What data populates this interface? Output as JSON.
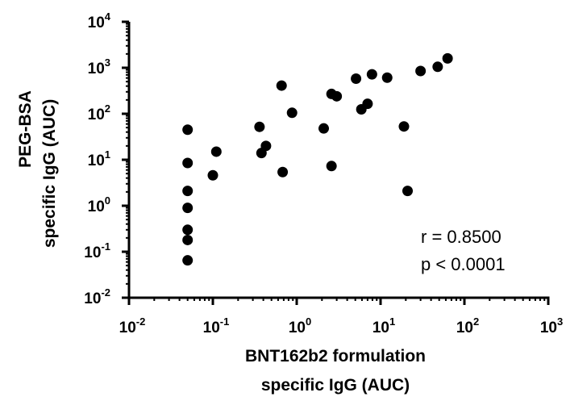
{
  "chart_data": {
    "type": "scatter",
    "x_scale": "log",
    "y_scale": "log",
    "xlim": [
      0.01,
      1000
    ],
    "ylim": [
      0.01,
      10000
    ],
    "x_ticks": [
      {
        "base": "10",
        "exp": "-2",
        "value": 0.01
      },
      {
        "base": "10",
        "exp": "-1",
        "value": 0.1
      },
      {
        "base": "10",
        "exp": "0",
        "value": 1
      },
      {
        "base": "10",
        "exp": "1",
        "value": 10
      },
      {
        "base": "10",
        "exp": "2",
        "value": 100
      },
      {
        "base": "10",
        "exp": "3",
        "value": 1000
      }
    ],
    "y_ticks": [
      {
        "base": "10",
        "exp": "-2",
        "value": 0.01
      },
      {
        "base": "10",
        "exp": "-1",
        "value": 0.1
      },
      {
        "base": "10",
        "exp": "0",
        "value": 1
      },
      {
        "base": "10",
        "exp": "1",
        "value": 10
      },
      {
        "base": "10",
        "exp": "2",
        "value": 100
      },
      {
        "base": "10",
        "exp": "3",
        "value": 1000
      },
      {
        "base": "10",
        "exp": "4",
        "value": 10000
      }
    ],
    "xlabel": [
      "BNT162b2 formulation",
      "specific IgG (AUC)"
    ],
    "ylabel": [
      "PEG-BSA",
      "specific IgG (AUC)"
    ],
    "annotations": [
      "r = 0.8500",
      "p < 0.0001"
    ],
    "point_color": "#000000",
    "grid": false,
    "points": [
      {
        "x": 0.05,
        "y": 45
      },
      {
        "x": 0.05,
        "y": 8.5
      },
      {
        "x": 0.05,
        "y": 2.1
      },
      {
        "x": 0.05,
        "y": 0.9
      },
      {
        "x": 0.05,
        "y": 0.3
      },
      {
        "x": 0.05,
        "y": 0.18
      },
      {
        "x": 0.05,
        "y": 0.065
      },
      {
        "x": 0.1,
        "y": 4.6
      },
      {
        "x": 0.11,
        "y": 15
      },
      {
        "x": 0.36,
        "y": 52
      },
      {
        "x": 0.38,
        "y": 14
      },
      {
        "x": 0.43,
        "y": 20
      },
      {
        "x": 0.66,
        "y": 410
      },
      {
        "x": 0.68,
        "y": 5.4
      },
      {
        "x": 0.88,
        "y": 105
      },
      {
        "x": 2.1,
        "y": 48
      },
      {
        "x": 2.6,
        "y": 270
      },
      {
        "x": 2.6,
        "y": 7.3
      },
      {
        "x": 3.0,
        "y": 240
      },
      {
        "x": 5.1,
        "y": 580
      },
      {
        "x": 5.9,
        "y": 125
      },
      {
        "x": 7.0,
        "y": 165
      },
      {
        "x": 7.9,
        "y": 720
      },
      {
        "x": 12,
        "y": 610
      },
      {
        "x": 19,
        "y": 53
      },
      {
        "x": 21,
        "y": 2.1
      },
      {
        "x": 30,
        "y": 850
      },
      {
        "x": 48,
        "y": 1050
      },
      {
        "x": 63,
        "y": 1600
      }
    ]
  }
}
